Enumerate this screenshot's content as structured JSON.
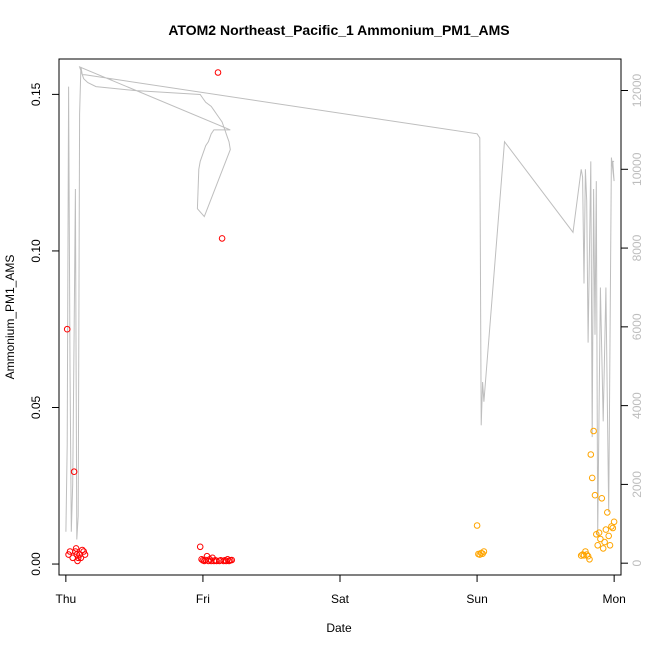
{
  "chart_data": {
    "type": "scatter",
    "title": "ATOM2 Northeast_Pacific_1 Ammonium_PM1_AMS",
    "xlabel": "Date",
    "ylabel": "Ammonium_PM1_AMS",
    "x_ticks": [
      "Thu",
      "Fri",
      "Sat",
      "Sun",
      "Mon"
    ],
    "xlim": [
      -0.05,
      4.05
    ],
    "ylim": [
      -0.0035,
      0.1613
    ],
    "y_ticks": [
      0.0,
      0.05,
      0.1,
      0.15
    ],
    "y_tick_labels": [
      "0.00",
      "0.05",
      "0.10",
      "0.15"
    ],
    "y2_ticks": [
      0,
      2000,
      4000,
      6000,
      8000,
      10000,
      12000
    ],
    "y2lim": [
      -300,
      12800
    ],
    "grid": false,
    "colors": {
      "series_red": "#ff0000",
      "series_orange": "#ffa500",
      "altitude_line": "#bebebe",
      "axis": "#000000"
    },
    "series": [
      {
        "color": "#ff0000",
        "x": [
          0.01,
          0.02,
          0.03,
          0.05,
          0.06,
          0.07,
          0.075,
          0.08,
          0.085,
          0.09,
          0.1,
          0.11,
          0.12,
          0.13,
          0.14,
          0.98,
          0.99,
          1.0,
          1.01,
          1.02,
          1.03,
          1.04,
          1.05,
          1.06,
          1.07,
          1.08,
          1.09,
          1.1,
          1.11,
          1.12,
          1.13,
          1.14,
          1.15,
          1.16,
          1.17,
          1.18,
          1.19,
          1.2,
          1.21
        ],
        "y": [
          0.075,
          0.003,
          0.004,
          0.002,
          0.0295,
          0.004,
          0.005,
          0.003,
          0.001,
          0.002,
          0.003,
          0.002,
          0.0045,
          0.004,
          0.003,
          0.0055,
          0.0015,
          0.0012,
          0.001,
          0.0013,
          0.0025,
          0.001,
          0.0015,
          0.001,
          0.002,
          0.001,
          0.0012,
          0.001,
          0.157,
          0.001,
          0.0012,
          0.104,
          0.001,
          0.0012,
          0.001,
          0.0015,
          0.001,
          0.0012,
          0.0013
        ]
      },
      {
        "color": "#ffa500",
        "x": [
          3.0,
          3.01,
          3.02,
          3.03,
          3.04,
          3.05,
          3.76,
          3.77,
          3.78,
          3.79,
          3.8,
          3.81,
          3.82,
          3.83,
          3.84,
          3.85,
          3.86,
          3.87,
          3.88,
          3.89,
          3.9,
          3.91,
          3.92,
          3.93,
          3.94,
          3.95,
          3.96,
          3.97,
          3.98,
          3.99,
          4.0
        ],
        "y": [
          0.0123,
          0.0032,
          0.003,
          0.0035,
          0.0033,
          0.004,
          0.0027,
          0.003,
          0.0028,
          0.004,
          0.003,
          0.0025,
          0.0015,
          0.035,
          0.0275,
          0.0425,
          0.022,
          0.0095,
          0.006,
          0.01,
          0.008,
          0.021,
          0.005,
          0.007,
          0.011,
          0.0165,
          0.009,
          0.006,
          0.012,
          0.0115,
          0.0135
        ]
      }
    ],
    "secondary_line": {
      "color": "#bebebe",
      "x": [
        0.0,
        0.01,
        0.02,
        0.03,
        0.04,
        0.05,
        0.06,
        0.07,
        0.08,
        0.09,
        0.1,
        0.11,
        0.12,
        0.13,
        0.16,
        0.22,
        0.5,
        0.98,
        1.0,
        1.02,
        1.06,
        1.08,
        1.1,
        1.12,
        1.14,
        1.15,
        1.16,
        1.17,
        1.18,
        1.19,
        1.2,
        1.01,
        0.96,
        0.97,
        0.98,
        1.02,
        1.04,
        1.06,
        1.08,
        1.1,
        1.12,
        1.14,
        1.16,
        1.18,
        1.2,
        0.1,
        0.12,
        0.14,
        3.0,
        3.01,
        3.02,
        3.03,
        3.04,
        3.05,
        3.2,
        3.7,
        3.76,
        3.77,
        3.78,
        3.79,
        3.8,
        3.81,
        3.82,
        3.83,
        3.84,
        3.85,
        3.86,
        3.87,
        3.88,
        3.9,
        3.92,
        3.94,
        3.96,
        3.98,
        4.0,
        3.99,
        4.0
      ],
      "y": [
        800,
        3000,
        12100,
        5000,
        800,
        2000,
        5800,
        9500,
        600,
        1200,
        11400,
        12600,
        12400,
        12300,
        12200,
        12100,
        12000,
        11900,
        11800,
        11700,
        11600,
        11500,
        11400,
        11300,
        11200,
        11100,
        11000,
        10900,
        10800,
        10700,
        10500,
        8800,
        9000,
        10000,
        10200,
        10600,
        10700,
        10900,
        11000,
        11000,
        11000,
        11000,
        11000,
        11000,
        11000,
        12600,
        12400,
        12400,
        10900,
        10850,
        10800,
        3500,
        4600,
        4100,
        10700,
        8400,
        10000,
        9800,
        7100,
        10000,
        9200,
        5600,
        8000,
        10200,
        3200,
        9500,
        5800,
        9700,
        700,
        7000,
        3600,
        7000,
        1300,
        10300,
        9700,
        10200,
        10200
      ]
    }
  }
}
